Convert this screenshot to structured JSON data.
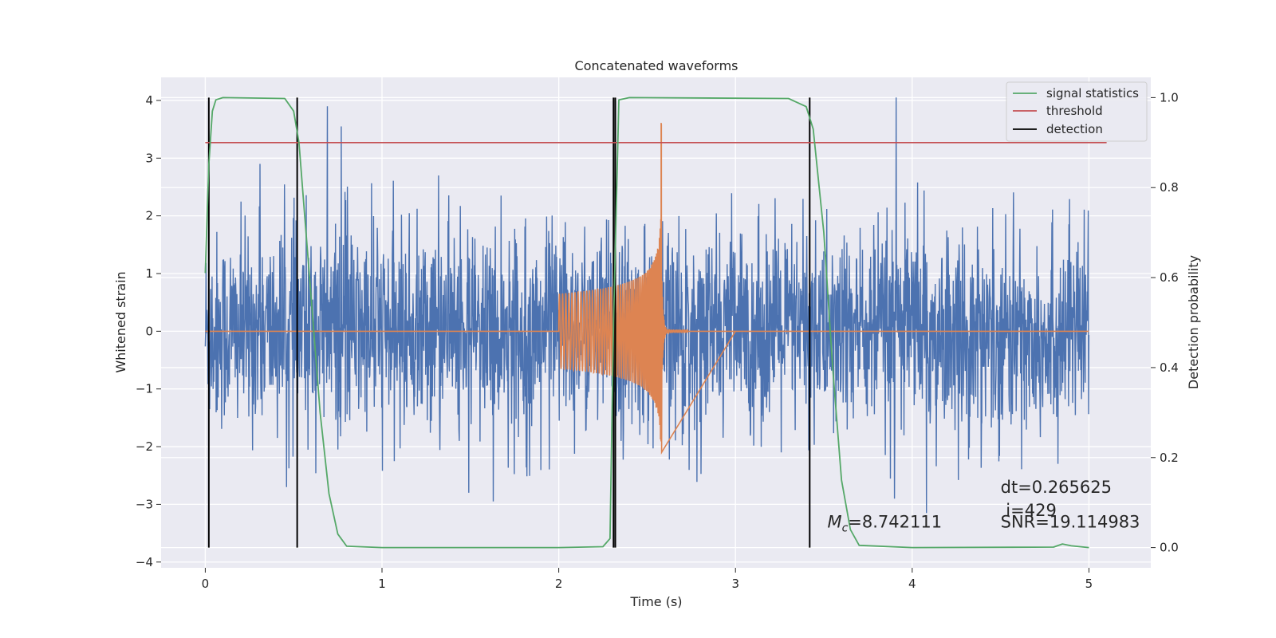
{
  "chart_data": {
    "type": "line",
    "title": "Concatenated waveforms",
    "xlabel": "Time (s)",
    "ylabel": "Whitened strain",
    "y2label": "Detection probability",
    "xlim": [
      -0.25,
      5.35
    ],
    "ylim": [
      -4.1,
      4.4
    ],
    "y2lim": [
      -0.045,
      1.045
    ],
    "xticks": [
      0,
      1,
      2,
      3,
      4,
      5
    ],
    "yticks": [
      -4,
      -3,
      -2,
      -1,
      0,
      1,
      2,
      3,
      4
    ],
    "y2ticks": [
      0.0,
      0.2,
      0.4,
      0.6,
      0.8,
      1.0
    ],
    "xtick_labels": [
      "0",
      "1",
      "2",
      "3",
      "4",
      "5"
    ],
    "ytick_labels": [
      "−4",
      "−3",
      "−2",
      "−1",
      "0",
      "1",
      "2",
      "3",
      "4"
    ],
    "y2tick_labels": [
      "0.0",
      "0.2",
      "0.4",
      "0.6",
      "0.8",
      "1.0"
    ],
    "grid": true,
    "legend_position": "top-right",
    "colors": {
      "strain": "#4c72b0",
      "template": "#dd8452",
      "signal_statistics": "#55a868",
      "threshold": "#c44e52",
      "detection": "#000000",
      "background": "#eaeaf2",
      "grid": "#ffffff"
    },
    "legend": [
      {
        "label": "signal statistics",
        "color": "#55a868"
      },
      {
        "label": "threshold",
        "color": "#c44e52"
      },
      {
        "label": "detection",
        "color": "#000000"
      }
    ],
    "strain": {
      "t_start": 0.0,
      "t_end": 5.0,
      "typical_amplitude": 1.5,
      "spikes": [
        {
          "t": 0.69,
          "y": 3.9
        },
        {
          "t": 0.77,
          "y": 3.55
        },
        {
          "t": 0.31,
          "y": 2.9
        },
        {
          "t": 1.32,
          "y": 2.7
        },
        {
          "t": 3.91,
          "y": 4.05
        },
        {
          "t": 0.46,
          "y": -2.7
        },
        {
          "t": 1.49,
          "y": -2.8
        },
        {
          "t": 1.63,
          "y": -2.95
        },
        {
          "t": 4.08,
          "y": -3.15
        },
        {
          "t": 3.9,
          "y": -2.9
        }
      ]
    },
    "template": {
      "chirp_start": 2.0,
      "merger": 2.58,
      "ringdown_end": 3.0,
      "start_amplitude": 0.65,
      "merger_peak": 3.6,
      "merger_trough": -2.1
    },
    "signal_statistics": {
      "x": [
        0.0,
        0.02,
        0.04,
        0.06,
        0.1,
        0.45,
        0.5,
        0.53,
        0.56,
        0.6,
        0.65,
        0.7,
        0.75,
        0.8,
        1.0,
        2.0,
        2.25,
        2.29,
        2.31,
        2.34,
        2.4,
        3.3,
        3.4,
        3.44,
        3.5,
        3.55,
        3.6,
        3.65,
        3.7,
        4.0,
        4.8,
        4.85,
        4.9,
        5.0
      ],
      "y": [
        0.61,
        0.85,
        0.97,
        0.995,
        1.0,
        0.998,
        0.97,
        0.9,
        0.75,
        0.55,
        0.3,
        0.12,
        0.03,
        0.003,
        0.0,
        0.0,
        0.002,
        0.02,
        0.5,
        0.995,
        1.0,
        0.998,
        0.98,
        0.93,
        0.7,
        0.4,
        0.15,
        0.04,
        0.005,
        0.0,
        0.001,
        0.008,
        0.004,
        0.0
      ]
    },
    "threshold": {
      "value": 0.9,
      "x": [
        0.0,
        5.1
      ]
    },
    "detections": [
      0.02,
      0.52,
      2.31,
      2.32,
      3.42
    ],
    "annotations": [
      {
        "text": "dt=0.265625",
        "x": 4.5,
        "y": -2.8
      },
      {
        "text": " i=429",
        "x": 4.5,
        "y": -3.2
      },
      {
        "text": "SNR=19.114983",
        "x": 4.5,
        "y": -3.4
      }
    ],
    "mc_annotation": {
      "symbol": "M",
      "subscript": "c",
      "value_text": "=8.742111",
      "x": 3.52,
      "y": -3.4
    }
  }
}
